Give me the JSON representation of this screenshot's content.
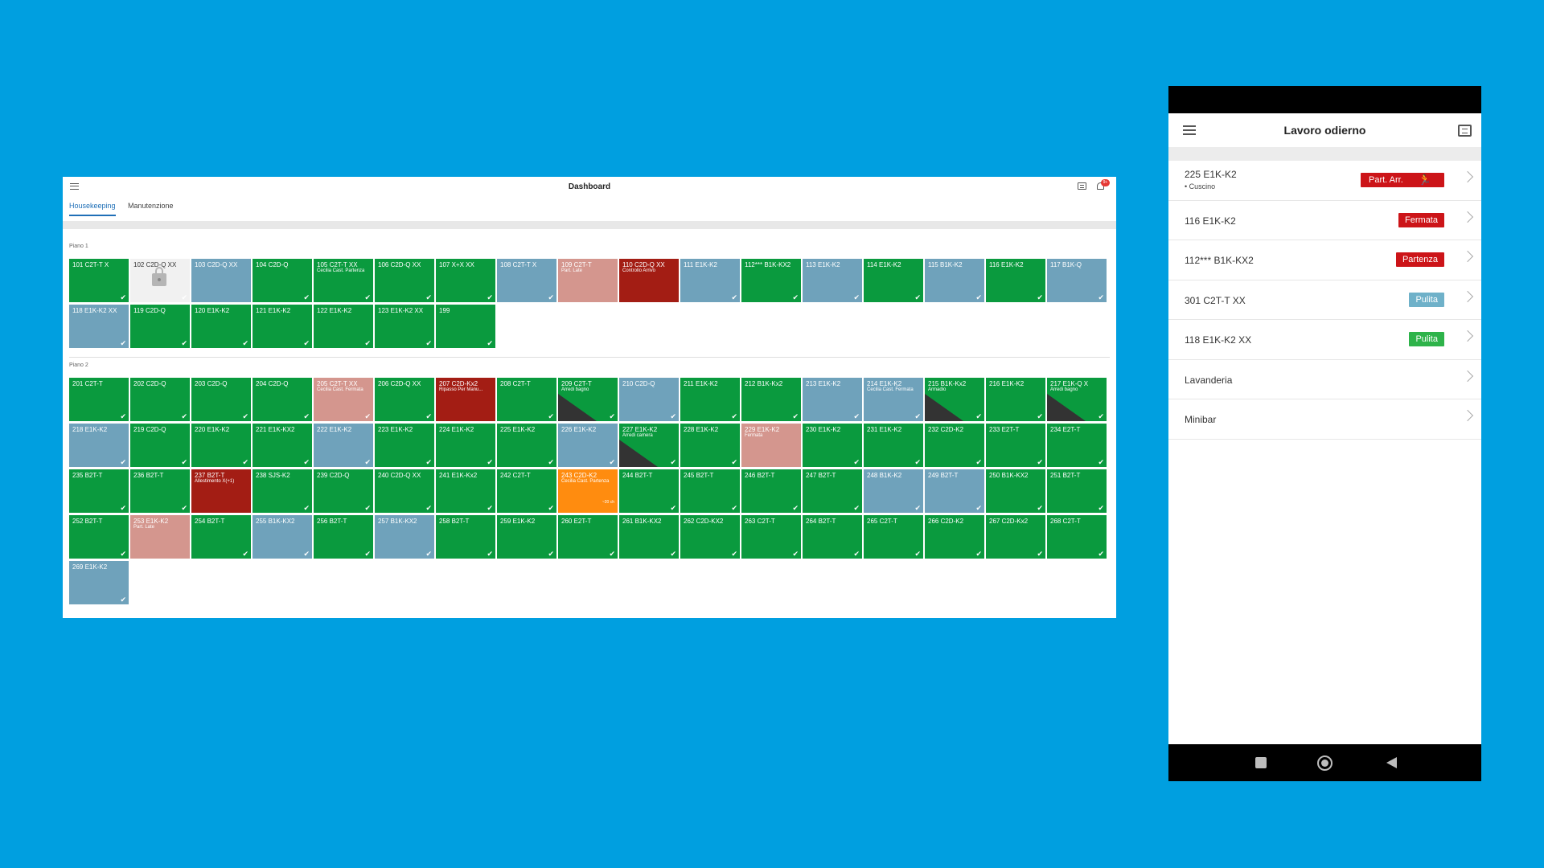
{
  "dashboard": {
    "title": "Dashboard",
    "tabs": [
      {
        "label": "Housekeeping",
        "active": true
      },
      {
        "label": "Manutenzione",
        "active": false
      }
    ],
    "notification_badge": "9+",
    "floors": [
      {
        "label": "Piano 1",
        "rooms": [
          {
            "name": "101 C2T-T X",
            "color": "green",
            "check": true
          },
          {
            "name": "102 C2D-Q XX",
            "color": "white",
            "check": true,
            "locked": true
          },
          {
            "name": "103 C2D-Q XX",
            "color": "blue",
            "check": false
          },
          {
            "name": "104 C2D-Q",
            "color": "green",
            "check": true
          },
          {
            "name": "105 C2T-T XX",
            "color": "green",
            "check": true,
            "note": "Cecilia Cast. Partenza"
          },
          {
            "name": "106 C2D-Q XX",
            "color": "green",
            "check": true
          },
          {
            "name": "107 X+X XX",
            "color": "green",
            "check": true
          },
          {
            "name": "108 C2T-T X",
            "color": "blue",
            "check": true
          },
          {
            "name": "109 C2T-T",
            "color": "pink",
            "check": false,
            "note": "Part. Late"
          },
          {
            "name": "110 C2D-Q XX",
            "color": "red",
            "check": false,
            "note": "Controllo Arrivo"
          },
          {
            "name": "111 E1K-K2",
            "color": "blue",
            "check": true
          },
          {
            "name": "112*** B1K-KX2",
            "color": "green",
            "check": true
          },
          {
            "name": "113 E1K-K2",
            "color": "blue",
            "check": true
          },
          {
            "name": "114 E1K-K2",
            "color": "green",
            "check": true
          },
          {
            "name": "115 B1K-K2",
            "color": "blue",
            "check": true
          },
          {
            "name": "116 E1K-K2",
            "color": "green",
            "check": true
          },
          {
            "name": "117 B1K-Q",
            "color": "blue",
            "check": true
          },
          {
            "name": "118 E1K-K2 XX",
            "color": "blue",
            "check": true
          },
          {
            "name": "119 C2D-Q",
            "color": "green",
            "check": true
          },
          {
            "name": "120 E1K-K2",
            "color": "green",
            "check": true
          },
          {
            "name": "121 E1K-K2",
            "color": "green",
            "check": true
          },
          {
            "name": "122 E1K-K2",
            "color": "green",
            "check": true
          },
          {
            "name": "123 E1K-K2 XX",
            "color": "green",
            "check": true
          },
          {
            "name": "199",
            "color": "green",
            "check": true
          }
        ]
      },
      {
        "label": "Piano 2",
        "rooms": [
          {
            "name": "201 C2T-T",
            "color": "green",
            "check": true
          },
          {
            "name": "202 C2D-Q",
            "color": "green",
            "check": true
          },
          {
            "name": "203 C2D-Q",
            "color": "green",
            "check": true
          },
          {
            "name": "204 C2D-Q",
            "color": "green",
            "check": true
          },
          {
            "name": "205 C2T-T XX",
            "color": "pink",
            "check": true,
            "note": "Cecilia Cast. Fermata"
          },
          {
            "name": "206 C2D-Q XX",
            "color": "green",
            "check": true
          },
          {
            "name": "207 C2D-Kx2",
            "color": "red",
            "check": false,
            "note": "Ripasso Per Manu..."
          },
          {
            "name": "208 C2T-T",
            "color": "green",
            "check": true
          },
          {
            "name": "209 C2T-T",
            "color": "green",
            "check": true,
            "note": "Arredi bagno",
            "diag": true
          },
          {
            "name": "210 C2D-Q",
            "color": "blue",
            "check": true
          },
          {
            "name": "211 E1K-K2",
            "color": "green",
            "check": true
          },
          {
            "name": "212 B1K-Kx2",
            "color": "green",
            "check": true
          },
          {
            "name": "213 E1K-K2",
            "color": "blue",
            "check": true
          },
          {
            "name": "214 E1K-K2",
            "color": "blue",
            "check": true,
            "note": "Cecilia Cast. Fermata"
          },
          {
            "name": "215 B1K-Kx2",
            "color": "green",
            "check": true,
            "note": "Armadio",
            "diag": true
          },
          {
            "name": "216 E1K-K2",
            "color": "green",
            "check": true
          },
          {
            "name": "217 E1K-Q X",
            "color": "green",
            "check": true,
            "note": "Arredi bagno",
            "diag": true
          },
          {
            "name": "218 E1K-K2",
            "color": "blue",
            "check": true
          },
          {
            "name": "219 C2D-Q",
            "color": "green",
            "check": true
          },
          {
            "name": "220 E1K-K2",
            "color": "green",
            "check": true
          },
          {
            "name": "221 E1K-KX2",
            "color": "green",
            "check": true
          },
          {
            "name": "222 E1K-K2",
            "color": "blue",
            "check": true
          },
          {
            "name": "223 E1K-K2",
            "color": "green",
            "check": true
          },
          {
            "name": "224 E1K-K2",
            "color": "green",
            "check": true
          },
          {
            "name": "225 E1K-K2",
            "color": "green",
            "check": true
          },
          {
            "name": "226 E1K-K2",
            "color": "blue",
            "check": true
          },
          {
            "name": "227 E1K-K2",
            "color": "green",
            "check": true,
            "note": "Arredi camera",
            "diag": true
          },
          {
            "name": "228 E1K-K2",
            "color": "green",
            "check": true
          },
          {
            "name": "229 E1K-K2",
            "color": "pink",
            "check": false,
            "note": "Fermata"
          },
          {
            "name": "230 E1K-K2",
            "color": "green",
            "check": true
          },
          {
            "name": "231 E1K-K2",
            "color": "green",
            "check": true
          },
          {
            "name": "232 C2D-K2",
            "color": "green",
            "check": true
          },
          {
            "name": "233 E2T-T",
            "color": "green",
            "check": true
          },
          {
            "name": "234 E2T-T",
            "color": "green",
            "check": true
          },
          {
            "name": "235 B2T-T",
            "color": "green",
            "check": true
          },
          {
            "name": "236 B2T-T",
            "color": "green",
            "check": true
          },
          {
            "name": "237 B2T-T",
            "color": "red",
            "check": false,
            "note": "Allestimento X(+1)"
          },
          {
            "name": "238 SJS-K2",
            "color": "green",
            "check": true
          },
          {
            "name": "239 C2D-Q",
            "color": "green",
            "check": true
          },
          {
            "name": "240 C2D-Q XX",
            "color": "green",
            "check": true
          },
          {
            "name": "241 E1K-Kx2",
            "color": "green",
            "check": true
          },
          {
            "name": "242 C2T-T",
            "color": "green",
            "check": true
          },
          {
            "name": "243 C2D-K2",
            "color": "orange",
            "check": false,
            "note": "Cecilia Cast. Partenza",
            "count": "~20 ch"
          },
          {
            "name": "244 B2T-T",
            "color": "green",
            "check": true
          },
          {
            "name": "245 B2T-T",
            "color": "green",
            "check": true
          },
          {
            "name": "246 B2T-T",
            "color": "green",
            "check": true
          },
          {
            "name": "247 B2T-T",
            "color": "green",
            "check": true
          },
          {
            "name": "248 B1K-K2",
            "color": "blue",
            "check": true
          },
          {
            "name": "249 B2T-T",
            "color": "blue",
            "check": true
          },
          {
            "name": "250 B1K-KX2",
            "color": "green",
            "check": true
          },
          {
            "name": "251 B2T-T",
            "color": "green",
            "check": true
          },
          {
            "name": "252 B2T-T",
            "color": "green",
            "check": true
          },
          {
            "name": "253 E1K-K2",
            "color": "pink",
            "check": false,
            "note": "Part. Late"
          },
          {
            "name": "254 B2T-T",
            "color": "green",
            "check": true
          },
          {
            "name": "255 B1K-KX2",
            "color": "blue",
            "check": true
          },
          {
            "name": "256 B2T-T",
            "color": "green",
            "check": true
          },
          {
            "name": "257 B1K-KX2",
            "color": "blue",
            "check": true
          },
          {
            "name": "258 B2T-T",
            "color": "green",
            "check": true
          },
          {
            "name": "259 E1K-K2",
            "color": "green",
            "check": true
          },
          {
            "name": "260 E2T-T",
            "color": "green",
            "check": true
          },
          {
            "name": "261 B1K-KX2",
            "color": "green",
            "check": true
          },
          {
            "name": "262 C2D-KX2",
            "color": "green",
            "check": true
          },
          {
            "name": "263 C2T-T",
            "color": "green",
            "check": true
          },
          {
            "name": "264 B2T-T",
            "color": "green",
            "check": true
          },
          {
            "name": "265 C2T-T",
            "color": "green",
            "check": true
          },
          {
            "name": "266 C2D-K2",
            "color": "green",
            "check": true
          },
          {
            "name": "267 C2D-Kx2",
            "color": "green",
            "check": true
          },
          {
            "name": "268 C2T-T",
            "color": "green",
            "check": true
          },
          {
            "name": "269 E1K-K2",
            "color": "blue",
            "check": true
          }
        ]
      }
    ]
  },
  "phone": {
    "title": "Lavoro odierno",
    "items": [
      {
        "name": "225 E1K-K2",
        "sub": "• Cuscino",
        "badge": "Part. Arr.",
        "badge_color": "red",
        "badge_icon": "running-person-icon"
      },
      {
        "name": "116 E1K-K2",
        "badge": "Fermata",
        "badge_color": "red"
      },
      {
        "name": "112*** B1K-KX2",
        "badge": "Partenza",
        "badge_color": "red"
      },
      {
        "name": "301 C2T-T XX",
        "badge": "Pulita",
        "badge_color": "teal"
      },
      {
        "name": "118 E1K-K2 XX",
        "badge": "Pulita",
        "badge_color": "green"
      },
      {
        "name": "Lavanderia"
      },
      {
        "name": "Minibar"
      }
    ]
  },
  "colors": {
    "background": "#009fe0",
    "green": "#0a9a3e",
    "blue": "#6fa2bb",
    "pink": "#d4968e",
    "red": "#a31d14",
    "orange": "#ff8c0f",
    "tab_active": "#1f6fb7"
  }
}
